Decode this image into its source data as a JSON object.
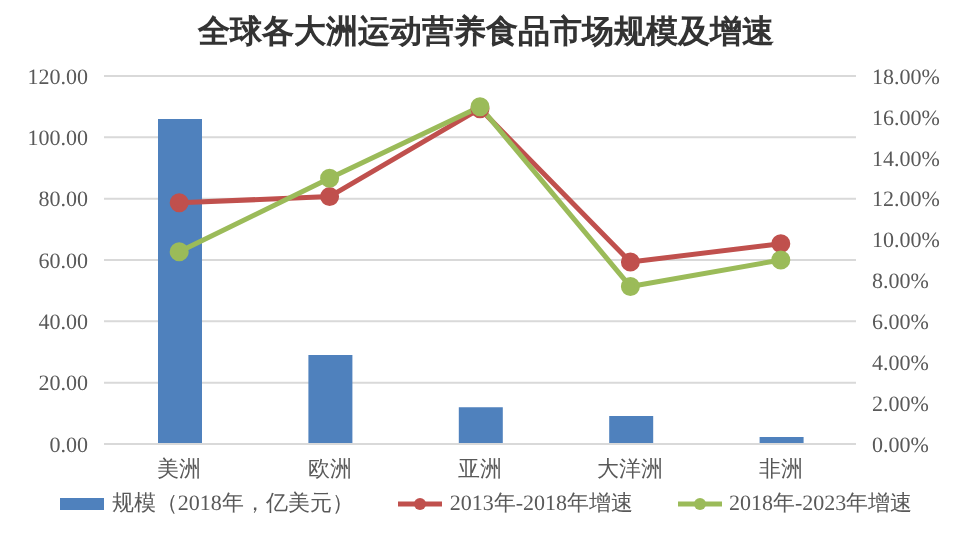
{
  "chart_data": {
    "type": "bar",
    "title": "全球各大洲运动营养食品市场规模及增速",
    "categories": [
      "美洲",
      "欧洲",
      "亚洲",
      "大洋洲",
      "非洲"
    ],
    "series": [
      {
        "name": "规模（2018年，亿美元）",
        "color": "#4f81bd",
        "values": [
          106,
          29,
          12,
          9.1,
          2.3
        ]
      },
      {
        "name": "2013年-2018年增速",
        "type": "line",
        "axis": "y2",
        "color": "#c0504d",
        "values": [
          11.8,
          12.1,
          16.4,
          8.9,
          9.8
        ]
      },
      {
        "name": "2018年-2023年增速",
        "type": "line",
        "axis": "y2",
        "color": "#9bbb59",
        "values": [
          9.4,
          13.0,
          16.5,
          7.7,
          9.0
        ]
      }
    ],
    "ylim": [
      0,
      120
    ],
    "yticks": [
      {
        "value": 0,
        "label": "0.00"
      },
      {
        "value": 20,
        "label": "20.00"
      },
      {
        "value": 40,
        "label": "40.00"
      },
      {
        "value": 60,
        "label": "60.00"
      },
      {
        "value": 80,
        "label": "80.00"
      },
      {
        "value": 100,
        "label": "100.00"
      },
      {
        "value": 120,
        "label": "120.00"
      }
    ],
    "y2lim": [
      0,
      18
    ],
    "y2ticks": [
      {
        "value": 0,
        "label": "0.00%"
      },
      {
        "value": 2,
        "label": "2.00%"
      },
      {
        "value": 4,
        "label": "4.00%"
      },
      {
        "value": 6,
        "label": "6.00%"
      },
      {
        "value": 8,
        "label": "8.00%"
      },
      {
        "value": 10,
        "label": "10.00%"
      },
      {
        "value": 12,
        "label": "12.00%"
      },
      {
        "value": 14,
        "label": "14.00%"
      },
      {
        "value": 16,
        "label": "16.00%"
      },
      {
        "value": 18,
        "label": "18.00%"
      }
    ],
    "grid": "y",
    "legend": "bottom",
    "marker": "circle",
    "line_style": "solid"
  }
}
